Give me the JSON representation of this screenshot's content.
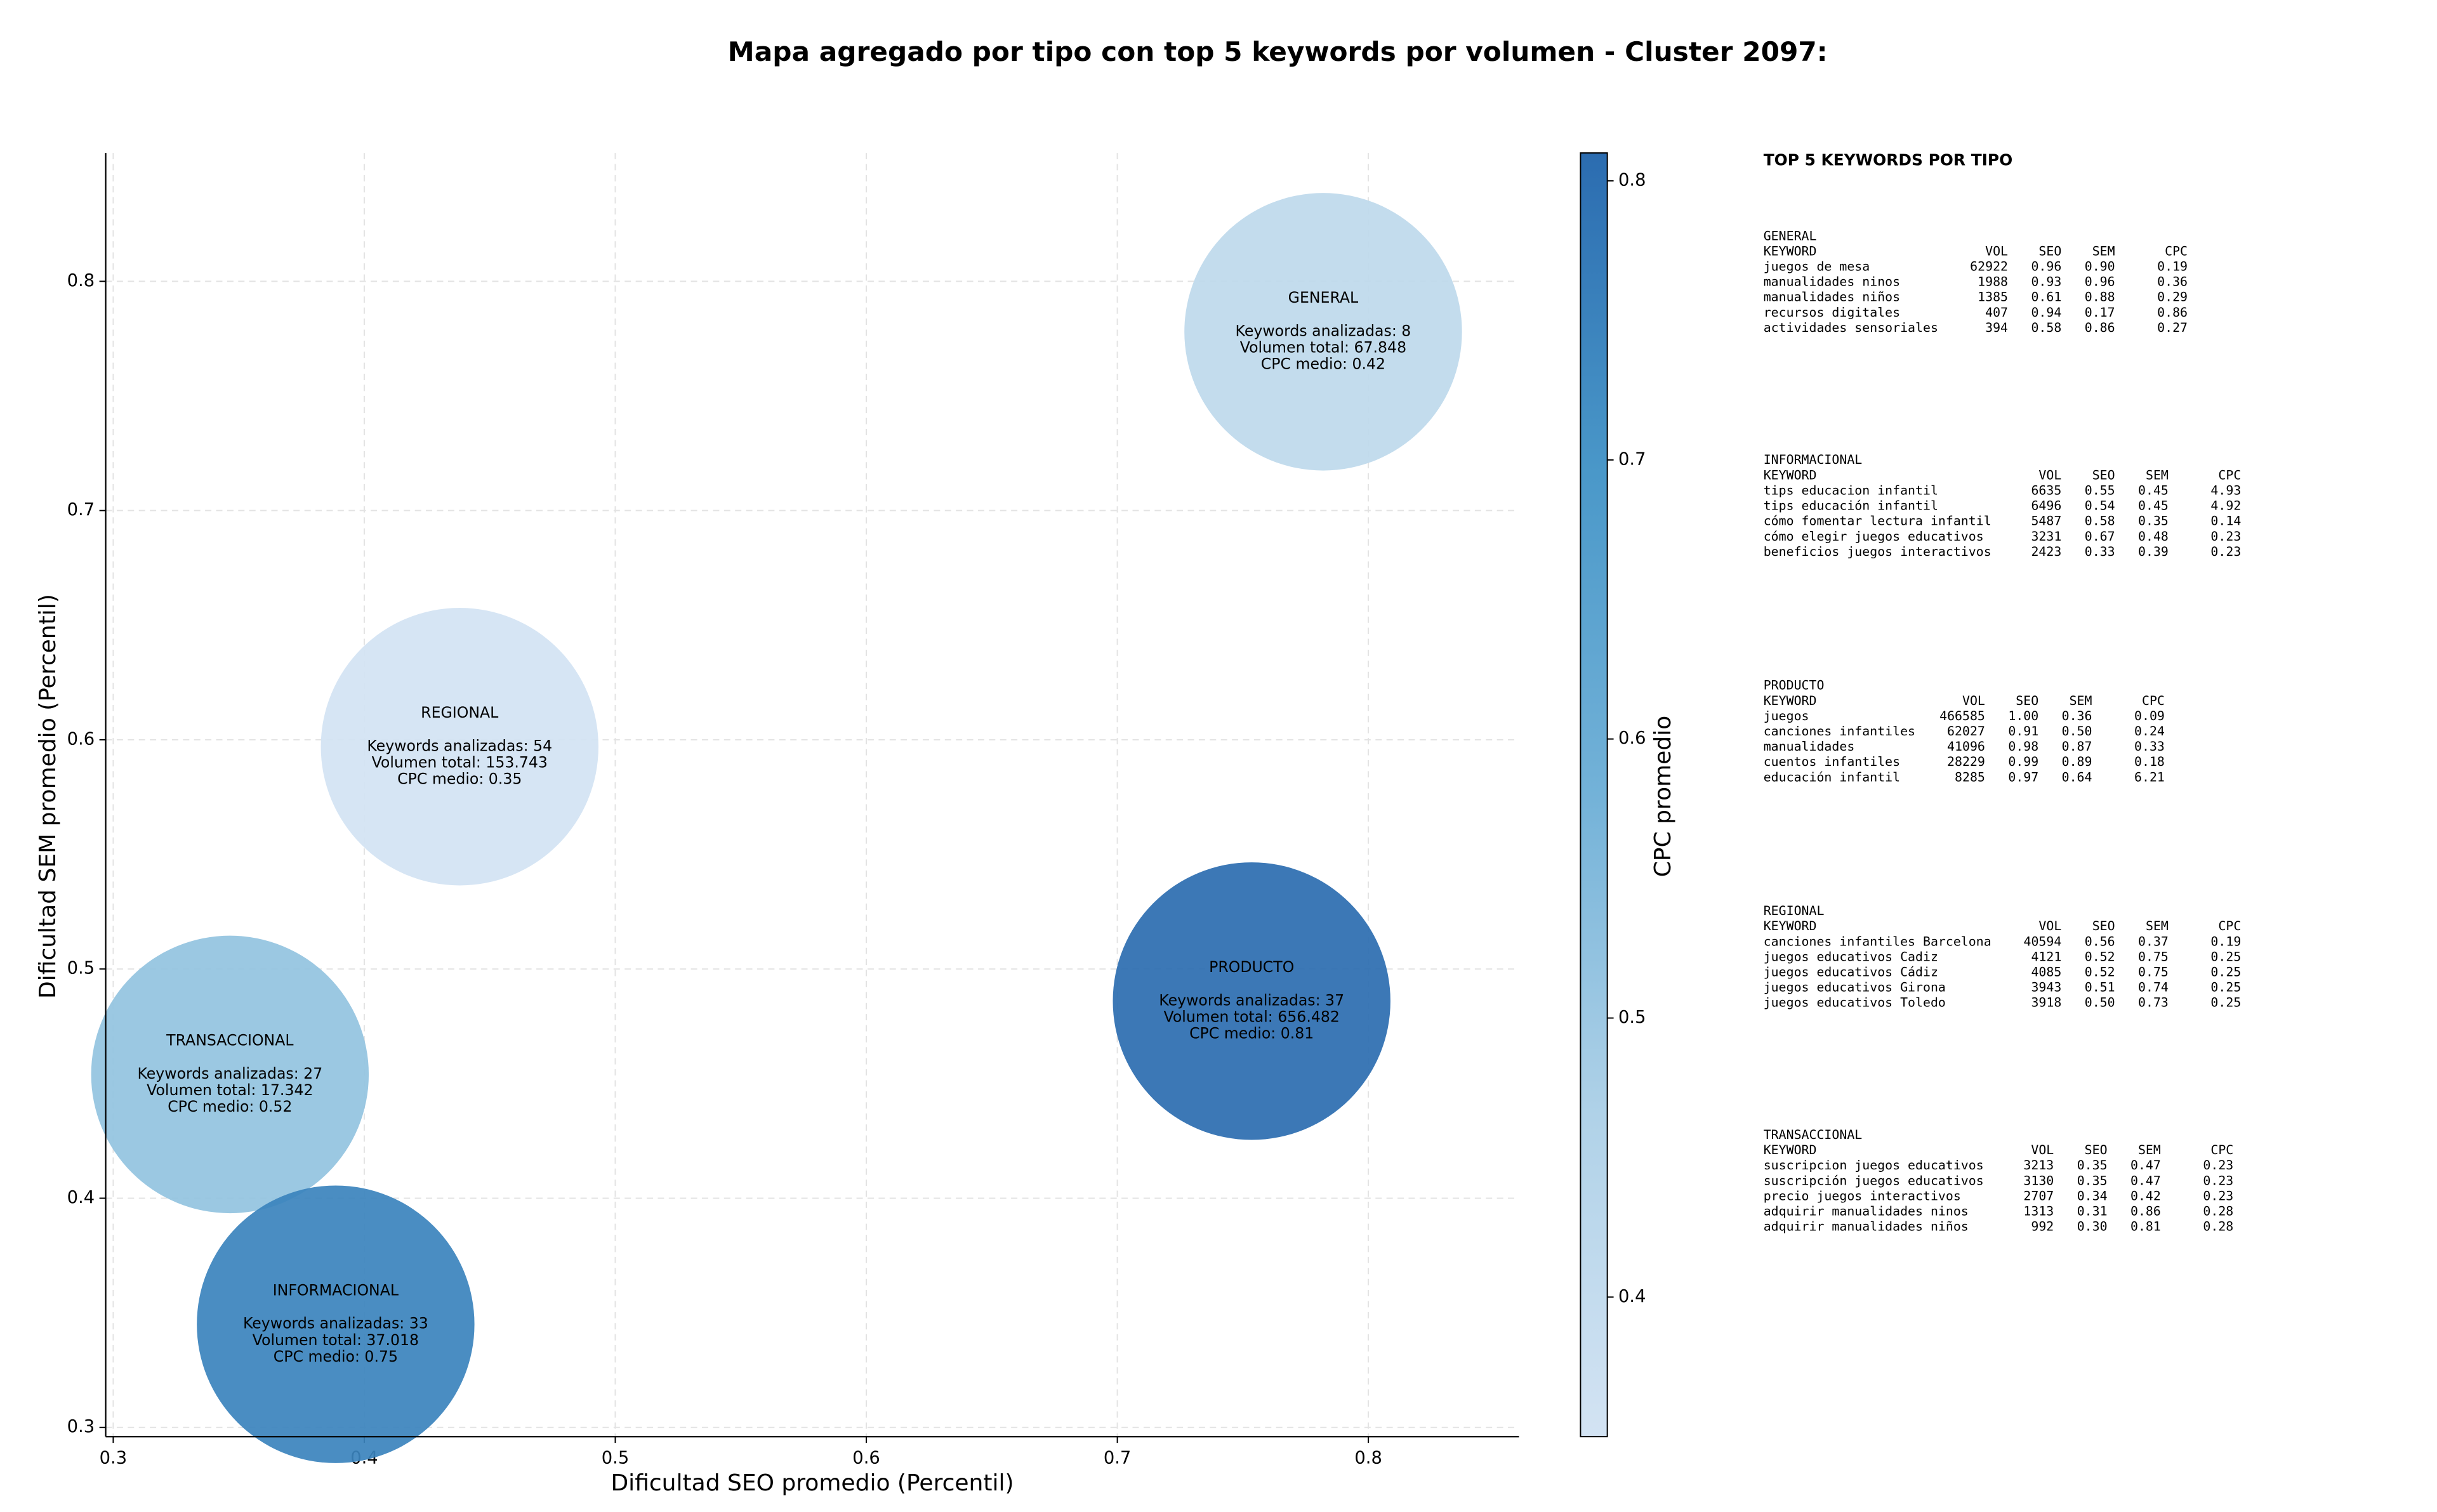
{
  "chart_data": {
    "type": "bubble",
    "title": "Mapa agregado por tipo con top 5 keywords por volumen - Cluster 2097:",
    "x_label": "Dificultad SEO promedio (Percentil)",
    "y_label": "Dificultad SEM promedio (Percentil)",
    "categories": [
      "GENERAL",
      "REGIONAL",
      "TRANSACCIONAL",
      "INFORMACIONAL",
      "PRODUCTO"
    ],
    "x": [
      0.782,
      0.438,
      0.3465,
      0.3886,
      0.7535
    ],
    "y": [
      0.778,
      0.597,
      0.454,
      0.345,
      0.486
    ],
    "cpc": [
      0.42,
      0.35,
      0.52,
      0.75,
      0.81
    ],
    "annotations": [
      [
        "Keywords analizadas: 8",
        "Volumen total: 67.848",
        "CPC medio: 0.42"
      ],
      [
        "Keywords analizadas: 54",
        "Volumen total: 153.743",
        "CPC medio: 0.35"
      ],
      [
        "Keywords analizadas: 27",
        "Volumen total: 17.342",
        "CPC medio: 0.52"
      ],
      [
        "Keywords analizadas: 33",
        "Volumen total: 37.018",
        "CPC medio: 0.75"
      ],
      [
        "Keywords analizadas: 37",
        "Volumen total: 656.482",
        "CPC medio: 0.81"
      ]
    ],
    "xlim": [
      0.297,
      0.86
    ],
    "xticks": [
      0.3,
      0.4,
      0.5,
      0.6,
      0.7,
      0.8
    ],
    "ylim": [
      0.296,
      0.856
    ],
    "yticks": [
      0.3,
      0.4,
      0.5,
      0.6,
      0.7,
      0.8
    ],
    "grid": true,
    "colorbar": {
      "label": "CPC promedio",
      "clim": [
        0.35,
        0.81
      ],
      "ticks": [
        0.4,
        0.5,
        0.6,
        0.7,
        0.8
      ],
      "colormap": [
        "#d3e3f3",
        "#b0d2e8",
        "#73b2d8",
        "#4a98c9",
        "#2b6cb0"
      ]
    }
  },
  "side_panel": {
    "title": "TOP 5 KEYWORDS POR TIPO",
    "header": [
      "KEYWORD",
      "VOL",
      "SEO",
      "SEM",
      "CPC"
    ],
    "sections": [
      {
        "name": "GENERAL",
        "rows": [
          [
            "juegos de mesa",
            "62922",
            "0.96",
            "0.90",
            "0.19"
          ],
          [
            "manualidades ninos",
            "1988",
            "0.93",
            "0.96",
            "0.36"
          ],
          [
            "manualidades niños",
            "1385",
            "0.61",
            "0.88",
            "0.29"
          ],
          [
            "recursos digitales",
            "407",
            "0.94",
            "0.17",
            "0.86"
          ],
          [
            "actividades sensoriales",
            "394",
            "0.58",
            "0.86",
            "0.27"
          ]
        ]
      },
      {
        "name": "INFORMACIONAL",
        "rows": [
          [
            "tips educacion infantil",
            "6635",
            "0.55",
            "0.45",
            "4.93"
          ],
          [
            "tips educación infantil",
            "6496",
            "0.54",
            "0.45",
            "4.92"
          ],
          [
            "cómo fomentar lectura infantil",
            "5487",
            "0.58",
            "0.35",
            "0.14"
          ],
          [
            "cómo elegir juegos educativos",
            "3231",
            "0.67",
            "0.48",
            "0.23"
          ],
          [
            "beneficios juegos interactivos",
            "2423",
            "0.33",
            "0.39",
            "0.23"
          ]
        ]
      },
      {
        "name": "PRODUCTO",
        "rows": [
          [
            "juegos",
            "466585",
            "1.00",
            "0.36",
            "0.09"
          ],
          [
            "canciones infantiles",
            "62027",
            "0.91",
            "0.50",
            "0.24"
          ],
          [
            "manualidades",
            "41096",
            "0.98",
            "0.87",
            "0.33"
          ],
          [
            "cuentos infantiles",
            "28229",
            "0.99",
            "0.89",
            "0.18"
          ],
          [
            "educación infantil",
            "8285",
            "0.97",
            "0.64",
            "6.21"
          ]
        ]
      },
      {
        "name": "REGIONAL",
        "rows": [
          [
            "canciones infantiles Barcelona",
            "40594",
            "0.56",
            "0.37",
            "0.19"
          ],
          [
            "juegos educativos Cadiz",
            "4121",
            "0.52",
            "0.75",
            "0.25"
          ],
          [
            "juegos educativos Cádiz",
            "4085",
            "0.52",
            "0.75",
            "0.25"
          ],
          [
            "juegos educativos Girona",
            "3943",
            "0.51",
            "0.74",
            "0.25"
          ],
          [
            "juegos educativos Toledo",
            "3918",
            "0.50",
            "0.73",
            "0.25"
          ]
        ]
      },
      {
        "name": "TRANSACCIONAL",
        "rows": [
          [
            "suscripcion juegos educativos",
            "3213",
            "0.35",
            "0.47",
            "0.23"
          ],
          [
            "suscripción juegos educativos",
            "3130",
            "0.35",
            "0.47",
            "0.23"
          ],
          [
            "precio juegos interactivos",
            "2707",
            "0.34",
            "0.42",
            "0.23"
          ],
          [
            "adquirir manualidades ninos",
            "1313",
            "0.31",
            "0.86",
            "0.28"
          ],
          [
            "adquirir manualidades niños",
            "992",
            "0.30",
            "0.81",
            "0.28"
          ]
        ]
      }
    ]
  }
}
